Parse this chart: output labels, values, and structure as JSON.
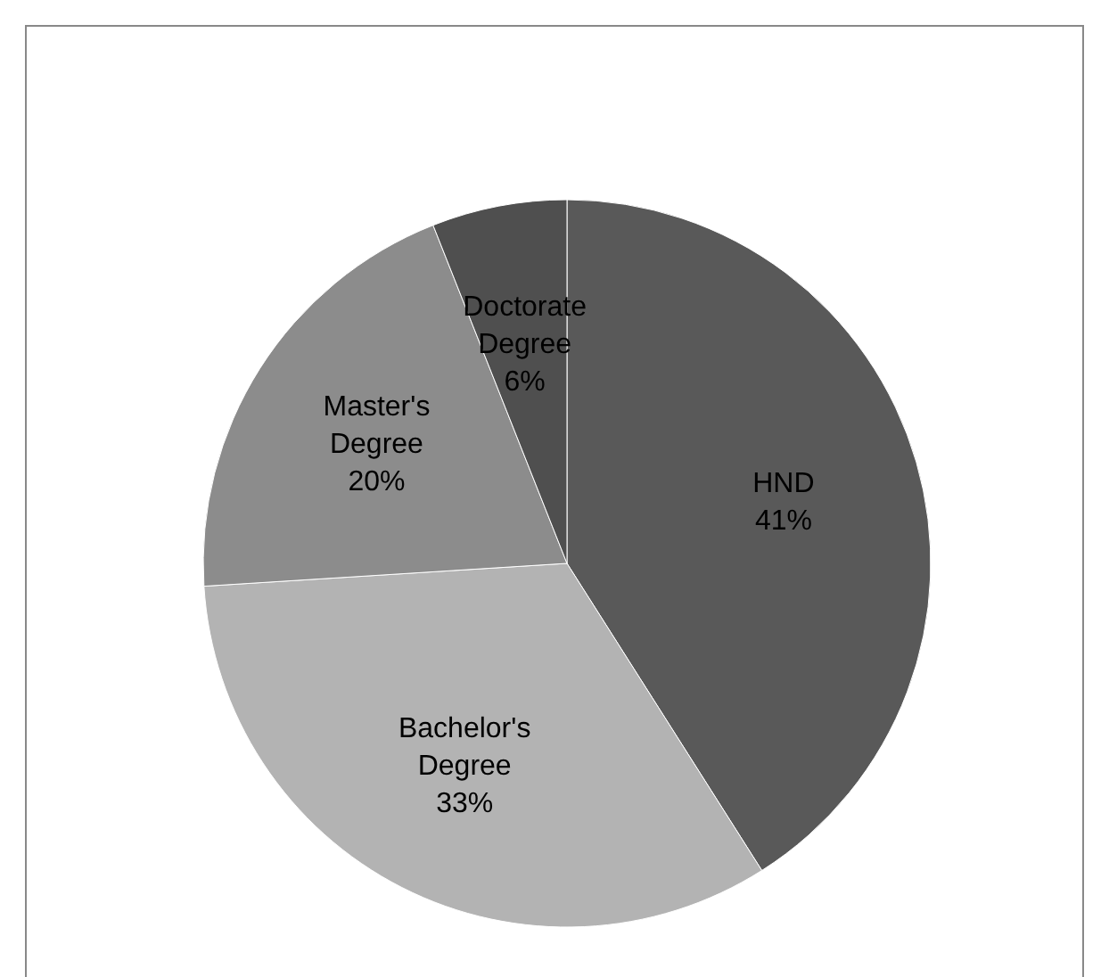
{
  "chart_data": {
    "type": "pie",
    "categories": [
      "HND",
      "Bachelor's Degree",
      "Master's Degree",
      "Doctorate Degree"
    ],
    "values": [
      41,
      33,
      20,
      6
    ],
    "colors": [
      "#595959",
      "#b3b3b3",
      "#8c8c8c",
      "#4f4f4f"
    ],
    "value_labels": [
      "41%",
      "33%",
      "20%",
      "6%"
    ],
    "legend": false
  }
}
